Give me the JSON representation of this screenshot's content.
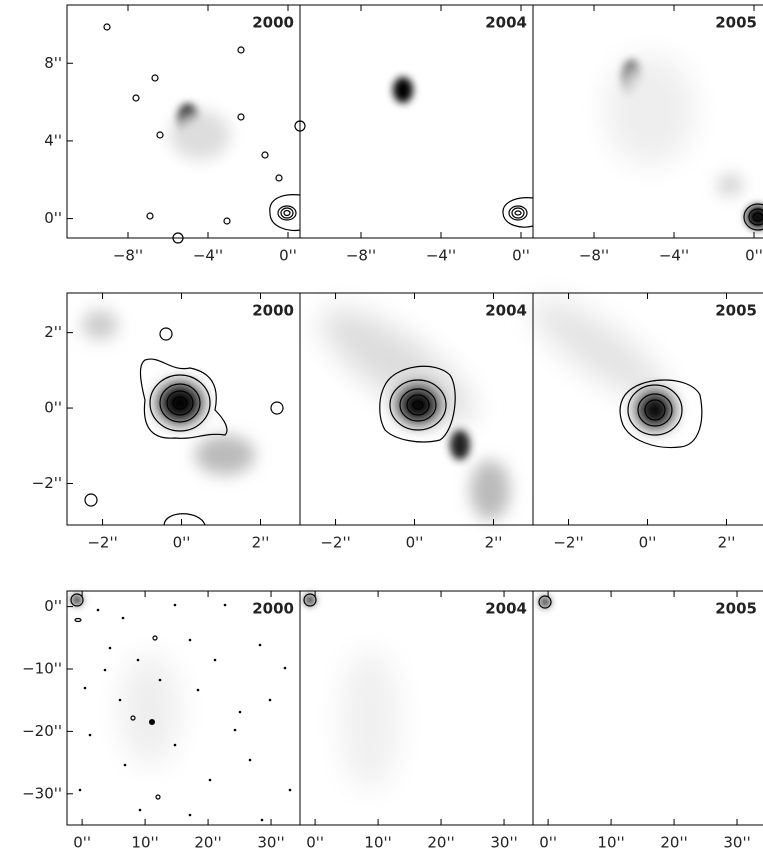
{
  "chart_data": [
    {
      "type": "image",
      "title": "2000",
      "xlim": [
        -11.05,
        0.6
      ],
      "ylim": [
        -1,
        11
      ],
      "xticks": [
        {
          "value": -8,
          "label": "−8''"
        },
        {
          "value": -4,
          "label": "−4''"
        },
        {
          "value": 0,
          "label": "0''"
        }
      ],
      "yticks": [
        {
          "value": 0,
          "label": "0''"
        },
        {
          "value": 4,
          "label": "4''"
        },
        {
          "value": 8,
          "label": "8''"
        }
      ]
    },
    {
      "type": "image",
      "title": "2004",
      "xlim": [
        -11.05,
        0.6
      ],
      "ylim": [
        -1,
        11
      ],
      "xticks": [
        {
          "value": -8,
          "label": "−8''"
        },
        {
          "value": -4,
          "label": "−4''"
        },
        {
          "value": 0,
          "label": "0''"
        }
      ]
    },
    {
      "type": "image",
      "title": "2005",
      "xlim": [
        -11.05,
        0.6
      ],
      "ylim": [
        -1,
        11
      ],
      "xticks": [
        {
          "value": -8,
          "label": "−8''"
        },
        {
          "value": -4,
          "label": "−4''"
        },
        {
          "value": 0,
          "label": "0''"
        }
      ]
    },
    {
      "type": "image",
      "title": "2000",
      "xlim": [
        -2.9,
        3.0
      ],
      "ylim": [
        -3.1,
        3.05
      ],
      "xticks": [
        {
          "value": -2,
          "label": "−2''"
        },
        {
          "value": 0,
          "label": "0''"
        },
        {
          "value": 2,
          "label": "2''"
        }
      ],
      "yticks": [
        {
          "value": -2,
          "label": "−2''"
        },
        {
          "value": 0,
          "label": "0''"
        },
        {
          "value": 2,
          "label": "2''"
        }
      ]
    },
    {
      "type": "image",
      "title": "2004",
      "xlim": [
        -2.9,
        3.0
      ],
      "ylim": [
        -3.1,
        3.05
      ],
      "xticks": [
        {
          "value": -2,
          "label": "−2''"
        },
        {
          "value": 0,
          "label": "0''"
        },
        {
          "value": 2,
          "label": "2''"
        }
      ]
    },
    {
      "type": "image",
      "title": "2005",
      "xlim": [
        -2.9,
        3.0
      ],
      "ylim": [
        -3.1,
        3.05
      ],
      "xticks": [
        {
          "value": -2,
          "label": "−2''"
        },
        {
          "value": 0,
          "label": "0''"
        },
        {
          "value": 2,
          "label": "2''"
        }
      ]
    },
    {
      "type": "image",
      "title": "2000",
      "xlim": [
        -2.4,
        34.6
      ],
      "ylim": [
        -35,
        2.5
      ],
      "xticks": [
        {
          "value": 0,
          "label": "0''"
        },
        {
          "value": 10,
          "label": "10''"
        },
        {
          "value": 20,
          "label": "20''"
        },
        {
          "value": 30,
          "label": "30''"
        }
      ],
      "yticks": [
        {
          "value": -30,
          "label": "−30''"
        },
        {
          "value": -20,
          "label": "−20''"
        },
        {
          "value": -10,
          "label": "−10''"
        },
        {
          "value": 0,
          "label": "0''"
        }
      ]
    },
    {
      "type": "image",
      "title": "2004",
      "xlim": [
        -2.4,
        34.6
      ],
      "ylim": [
        -35,
        2.5
      ],
      "xticks": [
        {
          "value": 0,
          "label": "0''"
        },
        {
          "value": 10,
          "label": "10''"
        },
        {
          "value": 20,
          "label": "20''"
        },
        {
          "value": 30,
          "label": "30''"
        }
      ]
    },
    {
      "type": "image",
      "title": "2005",
      "xlim": [
        -2.4,
        34.6
      ],
      "ylim": [
        -35,
        2.5
      ],
      "xticks": [
        {
          "value": 0,
          "label": "0''"
        },
        {
          "value": 10,
          "label": "10''"
        },
        {
          "value": 20,
          "label": "20''"
        },
        {
          "value": 30,
          "label": "30''"
        }
      ]
    }
  ]
}
